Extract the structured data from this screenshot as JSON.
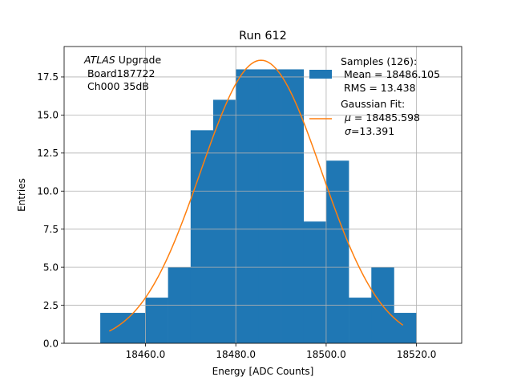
{
  "chart_data": {
    "type": "bar",
    "title": "Run 612",
    "xlabel": "Energy [ADC Counts]",
    "ylabel": "Entries",
    "xlim": [
      18442,
      18530
    ],
    "ylim": [
      0,
      19.5
    ],
    "grid": true,
    "x_ticks": [
      18460,
      18480,
      18500,
      18520
    ],
    "x_tick_labels": [
      "18460.0",
      "18480.0",
      "18500.0",
      "18520.0"
    ],
    "y_ticks": [
      0,
      2.5,
      5,
      7.5,
      10,
      12.5,
      15,
      17.5
    ],
    "y_tick_labels": [
      "0.0",
      "2.5",
      "5.0",
      "7.5",
      "10.0",
      "12.5",
      "15.0",
      "17.5"
    ],
    "colors": {
      "histogram": "#1f77b4",
      "fit": "#ff7f0e",
      "grid": "#b0b0b0"
    },
    "histogram": {
      "bin_edges": [
        18450,
        18455,
        18460,
        18465,
        18470,
        18475,
        18480,
        18485,
        18490,
        18495,
        18500,
        18505,
        18510,
        18515,
        18520
      ],
      "counts": [
        2,
        2,
        3,
        5,
        14,
        16,
        18,
        18,
        18,
        8,
        12,
        3,
        5,
        2
      ]
    },
    "fit": {
      "mu": 18485.598,
      "sigma": 13.391,
      "amplitude": 18.6,
      "x_range": [
        18452,
        18517
      ]
    },
    "annotation": {
      "italic": "ATLAS",
      "rest": " Upgrade",
      "line2": " Board187722",
      "line3": " Ch000 35dB"
    },
    "legend": {
      "position": "top-right",
      "samples_label": "Samples (126):",
      "mean_label": " Mean = 18486.105",
      "rms_label": " RMS = 13.438",
      "fit_label": "Gaussian Fit:",
      "mu_symbol": "μ",
      "mu_value": " = 18485.598",
      "sigma_symbol": "σ",
      "sigma_value": "=13.391"
    }
  }
}
